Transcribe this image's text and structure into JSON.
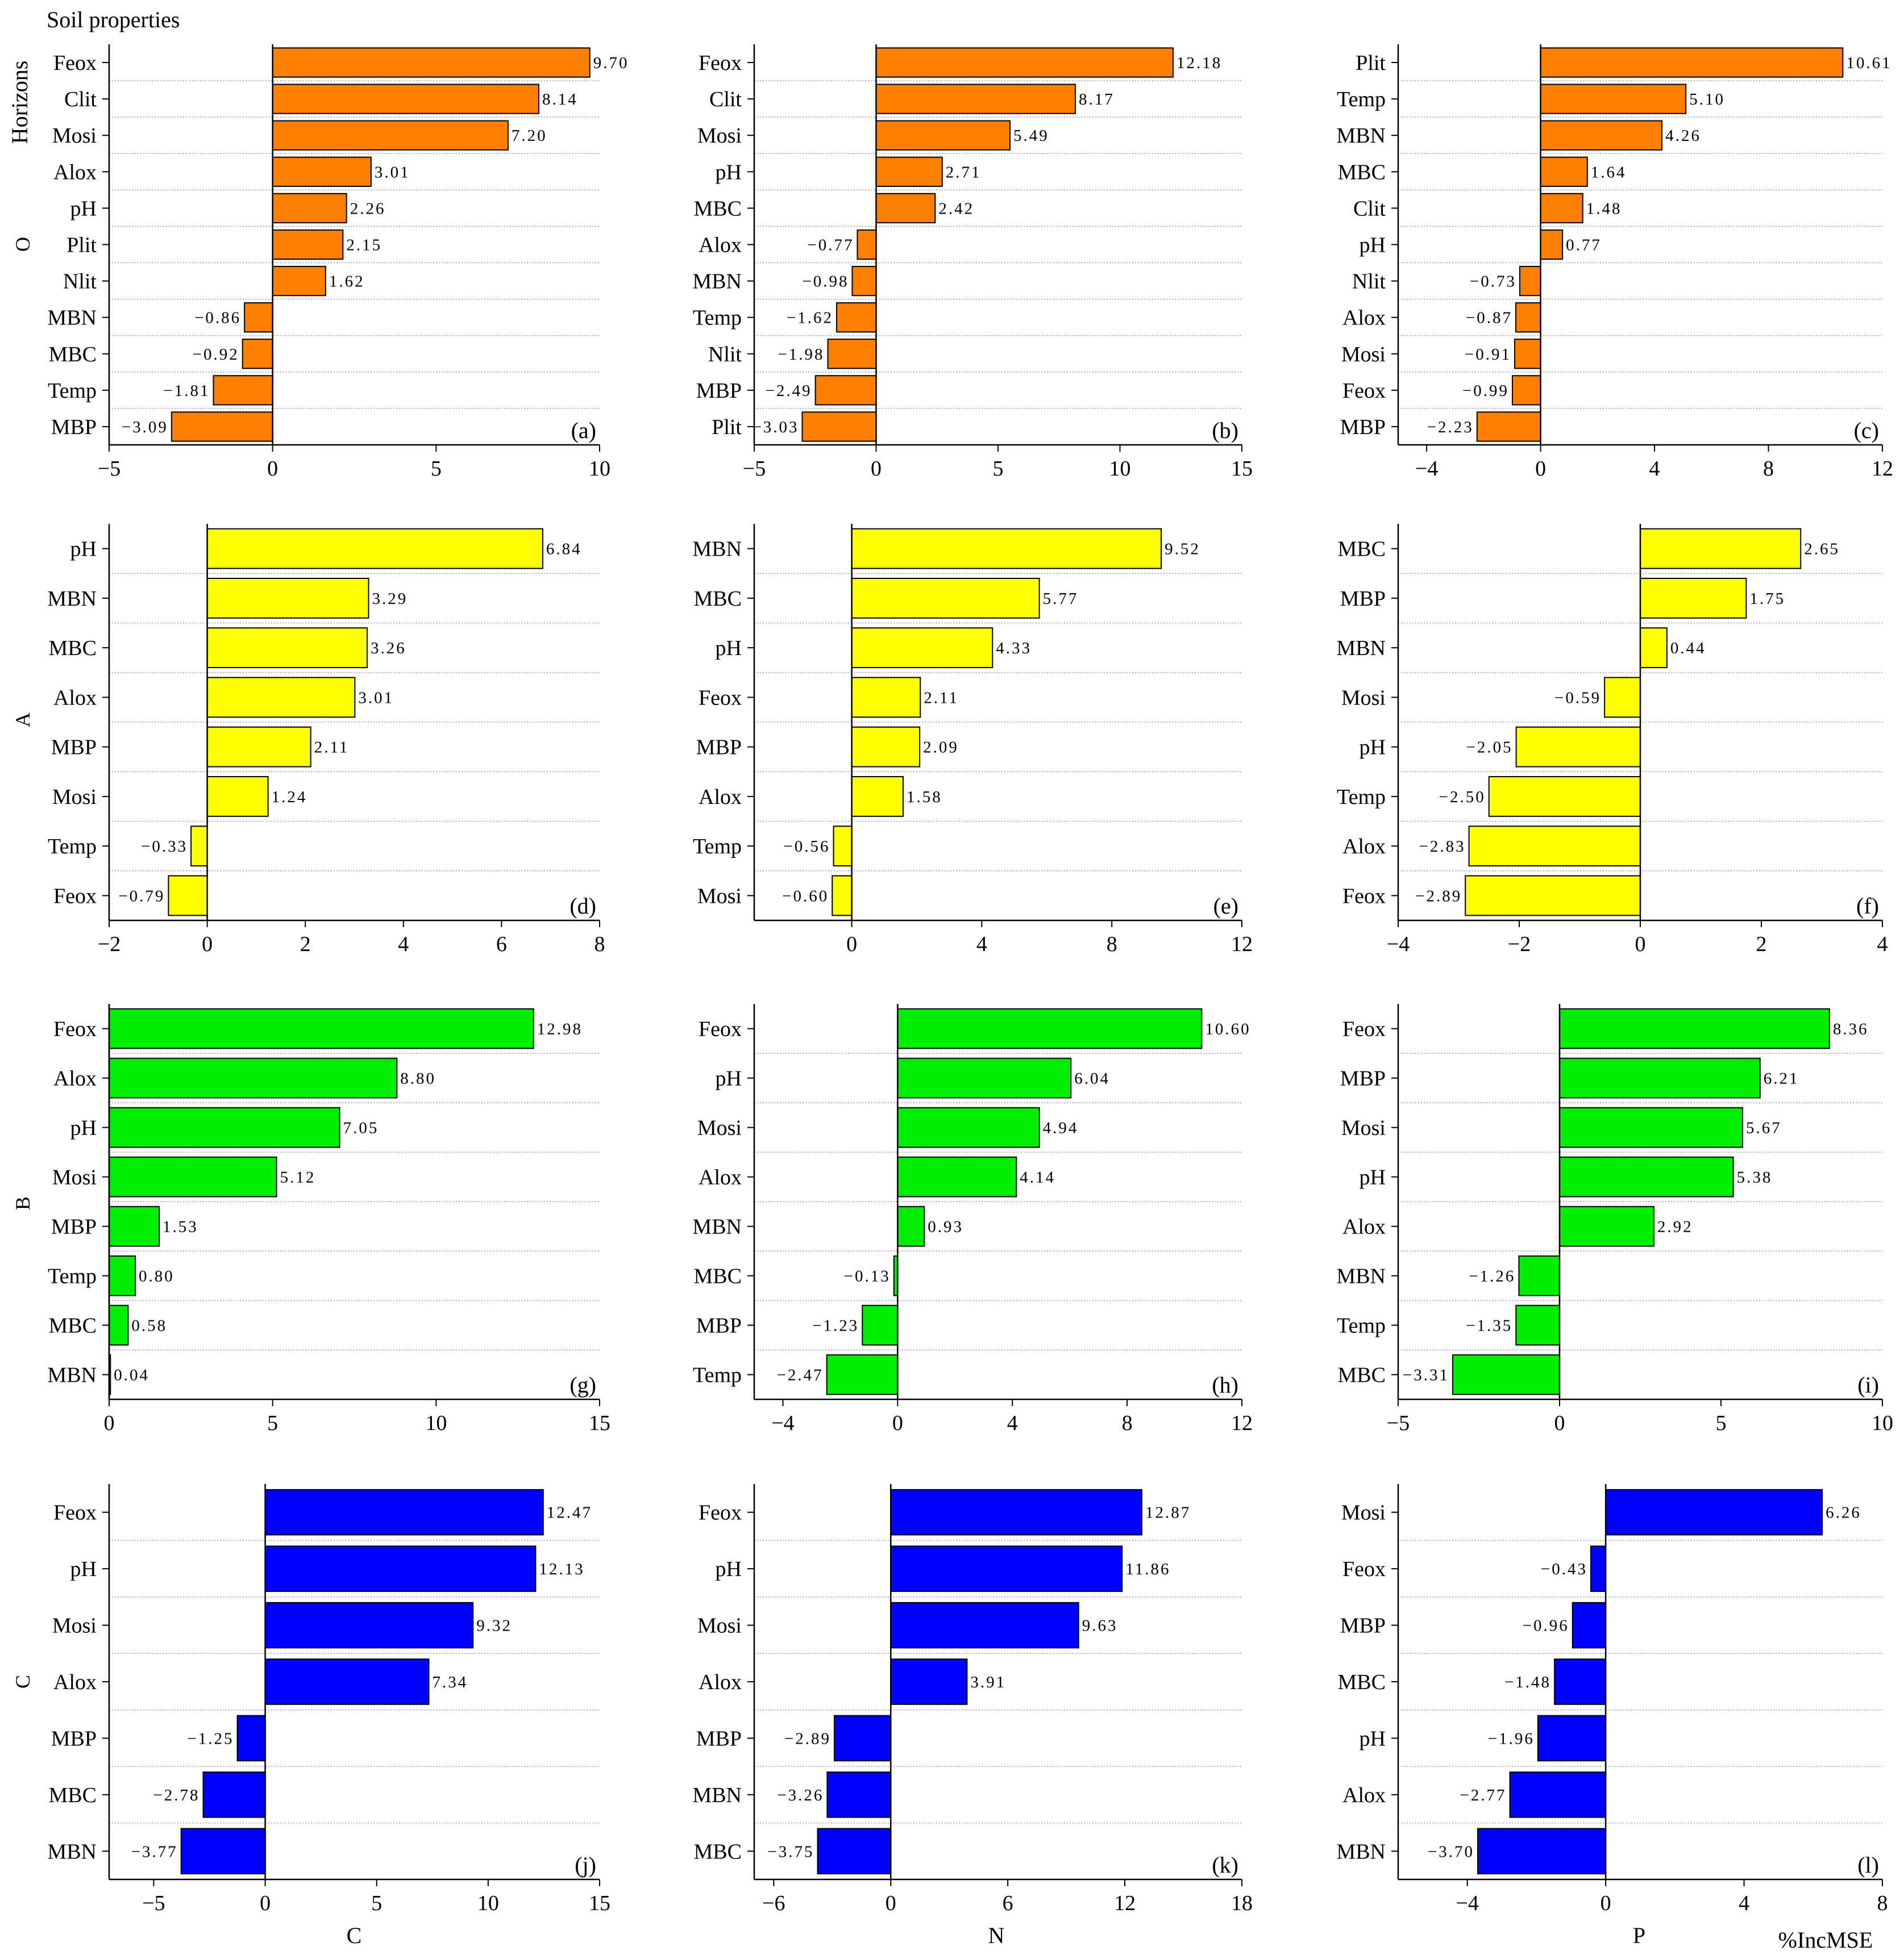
{
  "figure": {
    "title": "Soil properties",
    "row_axis_label": "Horizons",
    "metric_label": "%IncMSE",
    "column_labels": [
      "C",
      "N",
      "P"
    ],
    "row_labels": [
      "O",
      "A",
      "B",
      "C"
    ]
  },
  "colors": {
    "O": "#ff8000",
    "A": "#ffff00",
    "B": "#00ee00",
    "C": "#0000ff"
  },
  "chart_data": [
    {
      "type": "bar",
      "panel": "(a)",
      "horizon": "O",
      "element": "C",
      "xlim": [
        -5,
        10
      ],
      "ticks": [
        -5,
        0,
        5,
        10
      ],
      "categories": [
        "Feox",
        "Clit",
        "Mosi",
        "Alox",
        "pH",
        "Plit",
        "Nlit",
        "MBN",
        "MBC",
        "Temp",
        "MBP"
      ],
      "values": [
        9.7,
        8.14,
        7.2,
        3.01,
        2.26,
        2.15,
        1.62,
        -0.86,
        -0.92,
        -1.81,
        -3.09
      ]
    },
    {
      "type": "bar",
      "panel": "(b)",
      "horizon": "O",
      "element": "N",
      "xlim": [
        -5,
        15
      ],
      "ticks": [
        -5,
        0,
        5,
        10,
        15
      ],
      "categories": [
        "Feox",
        "Clit",
        "Mosi",
        "pH",
        "MBC",
        "Alox",
        "MBN",
        "Temp",
        "Nlit",
        "MBP",
        "Plit"
      ],
      "values": [
        12.18,
        8.17,
        5.49,
        2.71,
        2.42,
        -0.77,
        -0.98,
        -1.62,
        -1.98,
        -2.49,
        -3.03
      ]
    },
    {
      "type": "bar",
      "panel": "(c)",
      "horizon": "O",
      "element": "P",
      "xlim": [
        -5,
        12
      ],
      "ticks": [
        -4,
        0,
        4,
        8,
        12
      ],
      "categories": [
        "Plit",
        "Temp",
        "MBN",
        "MBC",
        "Clit",
        "pH",
        "Nlit",
        "Alox",
        "Mosi",
        "Feox",
        "MBP"
      ],
      "values": [
        10.61,
        5.1,
        4.26,
        1.64,
        1.48,
        0.77,
        -0.73,
        -0.87,
        -0.91,
        -0.99,
        -2.23
      ]
    },
    {
      "type": "bar",
      "panel": "(d)",
      "horizon": "A",
      "element": "C",
      "xlim": [
        -2,
        8
      ],
      "ticks": [
        -2,
        0,
        2,
        4,
        6,
        8
      ],
      "categories": [
        "pH",
        "MBN",
        "MBC",
        "Alox",
        "MBP",
        "Mosi",
        "Temp",
        "Feox"
      ],
      "values": [
        6.84,
        3.29,
        3.26,
        3.01,
        2.11,
        1.24,
        -0.33,
        -0.79
      ]
    },
    {
      "type": "bar",
      "panel": "(e)",
      "horizon": "A",
      "element": "N",
      "xlim": [
        -3,
        12
      ],
      "ticks": [
        0,
        4,
        8,
        12
      ],
      "categories": [
        "MBN",
        "MBC",
        "pH",
        "Feox",
        "MBP",
        "Alox",
        "Temp",
        "Mosi"
      ],
      "values": [
        9.52,
        5.77,
        4.33,
        2.11,
        2.09,
        1.58,
        -0.56,
        -0.6
      ]
    },
    {
      "type": "bar",
      "panel": "(f)",
      "horizon": "A",
      "element": "P",
      "xlim": [
        -4,
        4
      ],
      "ticks": [
        -4,
        -2,
        0,
        2,
        4
      ],
      "categories": [
        "MBC",
        "MBP",
        "MBN",
        "Mosi",
        "pH",
        "Temp",
        "Alox",
        "Feox"
      ],
      "values": [
        2.65,
        1.75,
        0.44,
        -0.59,
        -2.05,
        -2.5,
        -2.83,
        -2.89
      ]
    },
    {
      "type": "bar",
      "panel": "(g)",
      "horizon": "B",
      "element": "C",
      "xlim": [
        0,
        15
      ],
      "ticks": [
        0,
        5,
        10,
        15
      ],
      "categories": [
        "Feox",
        "Alox",
        "pH",
        "Mosi",
        "MBP",
        "Temp",
        "MBC",
        "MBN"
      ],
      "values": [
        12.98,
        8.8,
        7.05,
        5.12,
        1.53,
        0.8,
        0.58,
        0.04
      ]
    },
    {
      "type": "bar",
      "panel": "(h)",
      "horizon": "B",
      "element": "N",
      "xlim": [
        -5,
        12
      ],
      "ticks": [
        -4,
        0,
        4,
        8,
        12
      ],
      "categories": [
        "Feox",
        "pH",
        "Mosi",
        "Alox",
        "MBN",
        "MBC",
        "MBP",
        "Temp"
      ],
      "values": [
        10.6,
        6.04,
        4.94,
        4.14,
        0.93,
        -0.13,
        -1.23,
        -2.47
      ]
    },
    {
      "type": "bar",
      "panel": "(i)",
      "horizon": "B",
      "element": "P",
      "xlim": [
        -5,
        10
      ],
      "ticks": [
        -5,
        0,
        5,
        10
      ],
      "categories": [
        "Feox",
        "MBP",
        "Mosi",
        "pH",
        "Alox",
        "MBN",
        "Temp",
        "MBC"
      ],
      "values": [
        8.36,
        6.21,
        5.67,
        5.38,
        2.92,
        -1.26,
        -1.35,
        -3.31
      ]
    },
    {
      "type": "bar",
      "panel": "(j)",
      "horizon": "C",
      "element": "C",
      "xlim": [
        -7,
        15
      ],
      "ticks": [
        -5,
        0,
        5,
        10,
        15
      ],
      "categories": [
        "Feox",
        "pH",
        "Mosi",
        "Alox",
        "MBP",
        "MBC",
        "MBN"
      ],
      "values": [
        12.47,
        12.13,
        9.32,
        7.34,
        -1.25,
        -2.78,
        -3.77
      ]
    },
    {
      "type": "bar",
      "panel": "(k)",
      "horizon": "C",
      "element": "N",
      "xlim": [
        -7,
        18
      ],
      "ticks": [
        -6,
        0,
        6,
        12,
        18
      ],
      "categories": [
        "Feox",
        "pH",
        "Mosi",
        "Alox",
        "MBP",
        "MBN",
        "MBC"
      ],
      "values": [
        12.87,
        11.86,
        9.63,
        3.91,
        -2.89,
        -3.26,
        -3.75
      ]
    },
    {
      "type": "bar",
      "panel": "(l)",
      "horizon": "C",
      "element": "P",
      "xlim": [
        -6,
        8
      ],
      "ticks": [
        -4,
        0,
        4,
        8
      ],
      "categories": [
        "Mosi",
        "Feox",
        "MBP",
        "MBC",
        "pH",
        "Alox",
        "MBN"
      ],
      "values": [
        6.26,
        -0.43,
        -0.96,
        -1.48,
        -1.96,
        -2.77,
        -3.7
      ]
    }
  ]
}
